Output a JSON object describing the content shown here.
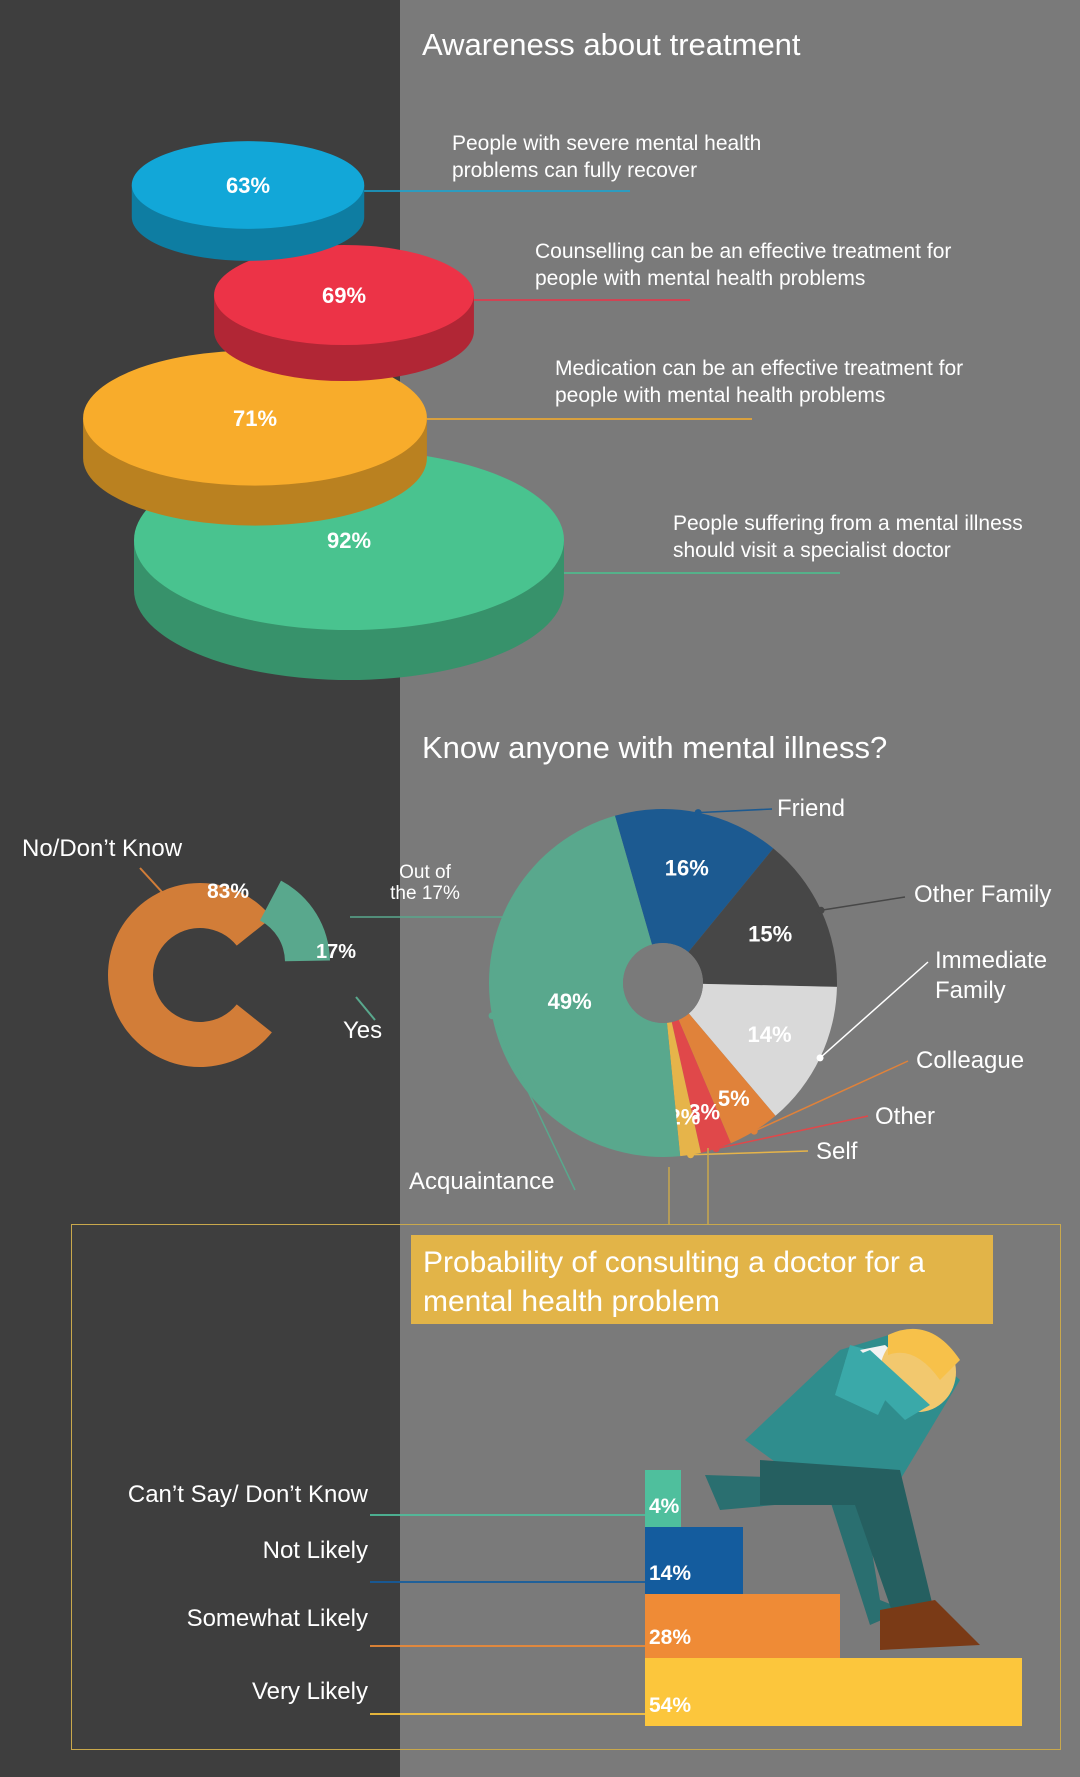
{
  "section_awareness": {
    "title": "Awareness about treatment"
  },
  "section_know": {
    "title": "Know anyone with mental illness?"
  },
  "section_probability": {
    "title": "Probability of consulting a doctor for a mental health problem"
  },
  "donut_note": "Out of\nthe 17%",
  "colors": {
    "left_panel": "#3e3e3e",
    "right_panel": "#7a7a7a",
    "awareness": [
      "#12a7d8",
      "#ec3347",
      "#f8ac2b",
      "#49c38f"
    ],
    "donut": [
      "#d27d38",
      "#59a88d"
    ],
    "pie": [
      "#1c5a91",
      "#474747",
      "#d9d9d9",
      "#e0823a",
      "#e0484a",
      "#e6b44a",
      "#59a88d"
    ],
    "bars": [
      "#4fbf9d",
      "#145c9e",
      "#ef8b36",
      "#fcc63c"
    ]
  },
  "chart_data": [
    {
      "type": "pie",
      "title": "Awareness about treatment",
      "categories": [
        "People with severe mental health problems can fully recover",
        "Counselling can be an effective treatment for people with mental health problems",
        "Medication can be an effective treatment for people with mental health problems",
        "People suffering from a mental illness should visit a specialist doctor"
      ],
      "values": [
        63,
        69,
        71,
        92
      ],
      "labels": [
        "63%",
        "69%",
        "71%",
        "92%"
      ]
    },
    {
      "type": "pie",
      "categories": [
        "No/Don’t Know",
        "Yes"
      ],
      "values": [
        83,
        17
      ],
      "labels": [
        "83%",
        "17%"
      ]
    },
    {
      "type": "pie",
      "title": "Know anyone with mental illness?",
      "categories": [
        "Friend",
        "Other Family",
        "Immediate Family",
        "Colleague",
        "Other",
        "Self",
        "Acquaintance"
      ],
      "values": [
        16,
        15,
        14,
        5,
        3,
        2,
        49
      ],
      "labels": [
        "16%",
        "15%",
        "14%",
        "5%",
        "3%",
        "2%",
        "49%"
      ]
    },
    {
      "type": "bar",
      "title": "Probability of consulting a doctor for a mental health problem",
      "categories": [
        "Can’t Say/ Don’t Know",
        "Not Likely",
        "Somewhat Likely",
        "Very Likely"
      ],
      "values": [
        4,
        14,
        28,
        54
      ],
      "labels": [
        "4%",
        "14%",
        "28%",
        "54%"
      ]
    }
  ]
}
